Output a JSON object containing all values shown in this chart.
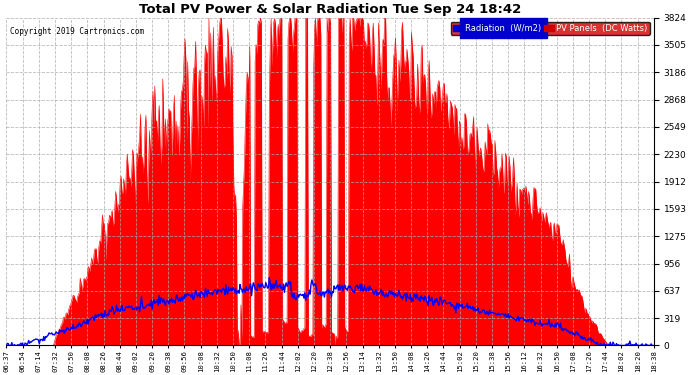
{
  "title": "Total PV Power & Solar Radiation Tue Sep 24 18:42",
  "copyright": "Copyright 2019 Cartronics.com",
  "background_color": "#ffffff",
  "plot_bg_color": "#ffffff",
  "grid_color": "#aaaaaa",
  "y_ticks": [
    0.0,
    318.6,
    637.3,
    955.9,
    1274.6,
    1593.2,
    1911.9,
    2230.5,
    2549.2,
    2867.8,
    3186.5,
    3505.1,
    3823.8
  ],
  "y_max": 3823.8,
  "x_tick_labels": [
    "06:37",
    "06:54",
    "07:14",
    "07:32",
    "07:50",
    "08:08",
    "08:26",
    "08:44",
    "09:02",
    "09:20",
    "09:38",
    "09:56",
    "10:08",
    "10:32",
    "10:50",
    "11:08",
    "11:26",
    "11:44",
    "12:02",
    "12:20",
    "12:38",
    "12:56",
    "13:14",
    "13:32",
    "13:50",
    "14:08",
    "14:26",
    "14:44",
    "15:02",
    "15:20",
    "15:38",
    "15:56",
    "16:12",
    "16:32",
    "16:50",
    "17:08",
    "17:26",
    "17:44",
    "18:02",
    "18:20",
    "18:38"
  ],
  "rad_line_color": "#0000ff",
  "pv_fill_color": "#ff0000",
  "legend_rad_bg": "#0000cc",
  "legend_pv_bg": "#cc0000"
}
